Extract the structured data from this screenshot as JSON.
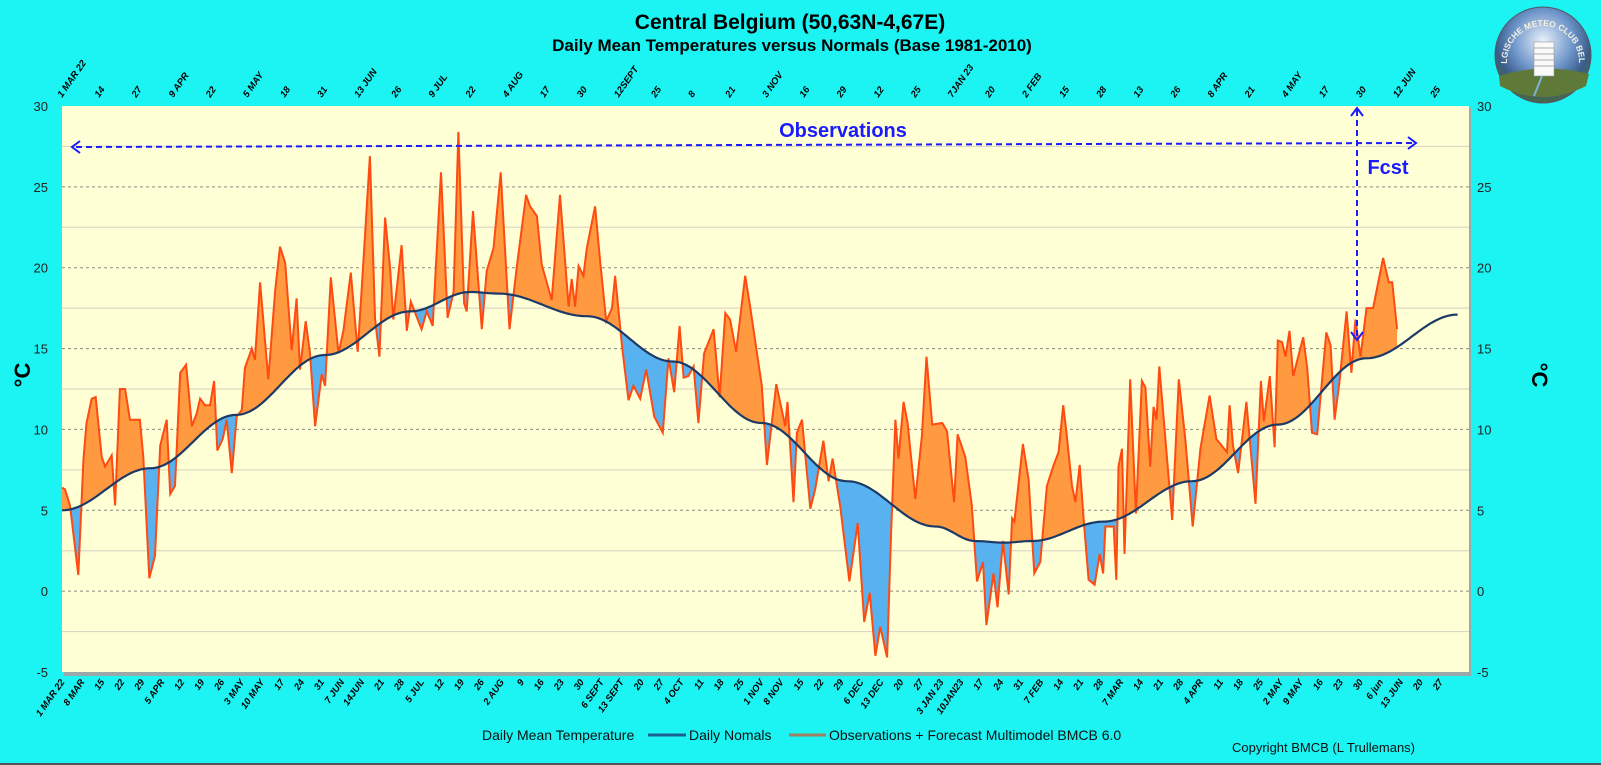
{
  "title": "Central Belgium (50,63N-4,67E)",
  "subtitle": "Daily Mean Temperatures versus Normals (Base 1981-2010)",
  "logo_text": "BELGISCHE METEO CLUB BELGE",
  "copyright": "Copyright BMCB (L Trullemans)",
  "colors": {
    "background": "#1cf4f4",
    "plot_bg": "#ffffd6",
    "obs_line": "#ff4a12",
    "above_fill": "#ff9a40",
    "below_fill": "#58b2f0",
    "normal_line": "#1d3a66",
    "annotation": "#1a1aff"
  },
  "chart_data": {
    "type": "area",
    "title": "Central Belgium (50,63N-4,67E)",
    "subtitle": "Daily Mean Temperatures versus Normals (Base 1981-2010)",
    "x_unit": "days since 1 MAR 2022",
    "xlim": [
      0,
      493
    ],
    "ylim": [
      -5,
      30
    ],
    "ylabel": "°C",
    "ylabel_right": "°C",
    "y_ticks": [
      -5,
      0,
      5,
      10,
      15,
      20,
      25,
      30
    ],
    "grid": true,
    "bottom_tick_step_days": 7,
    "bottom_tick_labels": [
      "1 MAR 22",
      "8 MAR",
      "15",
      "22",
      "29",
      "5 APR",
      "12",
      "19",
      "26",
      "3 MAY",
      "10 MAY",
      "17",
      "24",
      "31",
      "7 JUN",
      "14JUN",
      "21",
      "28",
      "5 JUL",
      "12",
      "19",
      "26",
      "2 AUG",
      "9",
      "16",
      "23",
      "30",
      "6 SEPT",
      "13 SEPT",
      "20",
      "27",
      "4 OCT",
      "11",
      "18",
      "25",
      "1 NOV",
      "8 NOV",
      "15",
      "22",
      "29",
      "6 DEC",
      "13 DEC",
      "20",
      "27",
      "3 JAN 23",
      "10JAN23",
      "17",
      "24",
      "31",
      "7 FEB",
      "14",
      "21",
      "28",
      "7 MAR",
      "14",
      "21",
      "28",
      "4 APR",
      "11",
      "18",
      "25",
      "2 MAY",
      "9 MAY",
      "16",
      "23",
      "30",
      "6 jun",
      "13 JUN",
      "20",
      "27"
    ],
    "top_tick_step_days": 13,
    "top_tick_labels": [
      "1 MAR 22",
      "14",
      "27",
      "9 APR",
      "22",
      "5 MAY",
      "18",
      "31",
      "13 JUN",
      "26",
      "9 JUL",
      "22",
      "4 AUG",
      "17",
      "30",
      "12SEPT",
      "25",
      "8",
      "21",
      "3 NOV",
      "16",
      "29",
      "12",
      "25",
      "7JAN 23",
      "20",
      "2 FEB",
      "15",
      "28",
      "13",
      "26",
      "8 APR",
      "21",
      "4 MAY",
      "17",
      "30",
      "12 JUN",
      "25"
    ],
    "legend": {
      "placement": "bottom",
      "entries": [
        "Daily Mean Temperature",
        "Daily Nomals",
        "Observations + Forecast Multimodel BMCB 6.0"
      ]
    },
    "annotations": {
      "observations": "Observations",
      "forecast": "Fcst",
      "forecast_start_day": 453
    },
    "series": [
      {
        "name": "Daily Nomals",
        "points": [
          [
            0,
            5.0
          ],
          [
            31,
            7.6
          ],
          [
            61,
            10.9
          ],
          [
            92,
            14.6
          ],
          [
            122,
            17.3
          ],
          [
            143,
            18.5
          ],
          [
            153,
            18.4
          ],
          [
            184,
            17.0
          ],
          [
            214,
            14.2
          ],
          [
            245,
            10.4
          ],
          [
            275,
            6.8
          ],
          [
            306,
            4.0
          ],
          [
            320,
            3.1
          ],
          [
            330,
            3.0
          ],
          [
            340,
            3.1
          ],
          [
            365,
            4.3
          ],
          [
            396,
            6.8
          ],
          [
            426,
            10.3
          ],
          [
            457,
            14.4
          ],
          [
            489,
            17.1
          ]
        ]
      },
      {
        "name": "Observations + Forecast Multimodel BMCB 6.0",
        "points": [
          [
            0,
            6.4
          ],
          [
            1,
            6.3
          ],
          [
            2.8,
            5.3
          ],
          [
            5.7,
            1.0
          ],
          [
            7.5,
            8.1
          ],
          [
            8.6,
            10.4
          ],
          [
            10.4,
            11.9
          ],
          [
            11.8,
            12.0
          ],
          [
            13.9,
            8.3
          ],
          [
            15.1,
            7.7
          ],
          [
            17.4,
            8.4
          ],
          [
            18.6,
            5.3
          ],
          [
            20.3,
            12.5
          ],
          [
            22.1,
            12.5
          ],
          [
            23.8,
            10.6
          ],
          [
            27.3,
            10.6
          ],
          [
            28.5,
            8.3
          ],
          [
            30.6,
            0.8
          ],
          [
            32.6,
            2.2
          ],
          [
            34.4,
            9.0
          ],
          [
            36.7,
            10.6
          ],
          [
            37.9,
            6.0
          ],
          [
            39.6,
            6.5
          ],
          [
            41.4,
            13.5
          ],
          [
            43.5,
            14.0
          ],
          [
            45.5,
            10.2
          ],
          [
            47.2,
            11.0
          ],
          [
            48.4,
            11.9
          ],
          [
            50.1,
            11.5
          ],
          [
            51.9,
            11.5
          ],
          [
            53.3,
            13.0
          ],
          [
            54.4,
            8.7
          ],
          [
            56.3,
            9.4
          ],
          [
            57.7,
            10.6
          ],
          [
            59.5,
            7.3
          ],
          [
            61.2,
            10.8
          ],
          [
            63,
            11.2
          ],
          [
            64.1,
            13.8
          ],
          [
            66.5,
            15.0
          ],
          [
            67.6,
            14.3
          ],
          [
            69.4,
            19.1
          ],
          [
            72.3,
            13.1
          ],
          [
            74.7,
            18.6
          ],
          [
            76.4,
            21.3
          ],
          [
            78.2,
            20.3
          ],
          [
            80.5,
            14.9
          ],
          [
            82.2,
            18.1
          ],
          [
            83.4,
            13.7
          ],
          [
            85.4,
            16.7
          ],
          [
            86.9,
            14.7
          ],
          [
            88.7,
            10.2
          ],
          [
            91,
            13.4
          ],
          [
            92.2,
            12.7
          ],
          [
            94.2,
            19.4
          ],
          [
            96.9,
            14.7
          ],
          [
            98.6,
            16.1
          ],
          [
            101.2,
            19.7
          ],
          [
            103.6,
            14.8
          ],
          [
            105,
            18.7
          ],
          [
            107.9,
            26.9
          ],
          [
            109.7,
            16.8
          ],
          [
            111.2,
            14.5
          ],
          [
            113.2,
            23.1
          ],
          [
            115,
            19.9
          ],
          [
            116.1,
            16.8
          ],
          [
            119,
            21.4
          ],
          [
            120.8,
            16.1
          ],
          [
            122.2,
            17.9
          ],
          [
            126,
            16.2
          ],
          [
            127.8,
            17.3
          ],
          [
            129.9,
            16.4
          ],
          [
            132.8,
            25.9
          ],
          [
            135.1,
            16.9
          ],
          [
            137.2,
            18.5
          ],
          [
            138.9,
            28.4
          ],
          [
            140.9,
            17.8
          ],
          [
            141.8,
            17.3
          ],
          [
            144,
            23.5
          ],
          [
            147.1,
            16.2
          ],
          [
            148.8,
            19.8
          ],
          [
            151.2,
            21.2
          ],
          [
            153.7,
            25.9
          ],
          [
            156.8,
            16.2
          ],
          [
            159.4,
            20.1
          ],
          [
            162.6,
            24.5
          ],
          [
            164,
            23.8
          ],
          [
            166.4,
            23.2
          ],
          [
            168.1,
            20.2
          ],
          [
            171.6,
            18.0
          ],
          [
            174.5,
            24.5
          ],
          [
            177.5,
            17.6
          ],
          [
            178.6,
            19.3
          ],
          [
            179.8,
            17.6
          ],
          [
            181,
            20.1
          ],
          [
            182.7,
            19.5
          ],
          [
            183.9,
            21.2
          ],
          [
            186.8,
            23.8
          ],
          [
            188.6,
            20.3
          ],
          [
            190.7,
            16.7
          ],
          [
            192.7,
            17.5
          ],
          [
            193.8,
            19.5
          ],
          [
            196.2,
            15.2
          ],
          [
            198.5,
            11.8
          ],
          [
            200.2,
            12.7
          ],
          [
            202.6,
            11.9
          ],
          [
            204.7,
            13.7
          ],
          [
            207.5,
            10.8
          ],
          [
            210.5,
            9.8
          ],
          [
            212.5,
            14.4
          ],
          [
            214.5,
            12.3
          ],
          [
            216.4,
            16.4
          ],
          [
            217.8,
            13.2
          ],
          [
            219.5,
            13.3
          ],
          [
            221.3,
            13.9
          ],
          [
            223,
            10.4
          ],
          [
            225,
            14.7
          ],
          [
            228.3,
            16.2
          ],
          [
            230.4,
            12.0
          ],
          [
            232.4,
            17.2
          ],
          [
            234.1,
            16.8
          ],
          [
            236.2,
            14.8
          ],
          [
            239.4,
            19.5
          ],
          [
            241.1,
            17.6
          ],
          [
            245.2,
            12.7
          ],
          [
            247,
            7.8
          ],
          [
            250.3,
            12.8
          ],
          [
            253.4,
            10.2
          ],
          [
            254.2,
            11.7
          ],
          [
            256.3,
            5.5
          ],
          [
            257.5,
            9.8
          ],
          [
            259.3,
            10.6
          ],
          [
            262.2,
            5.1
          ],
          [
            263.9,
            6.3
          ],
          [
            266.8,
            9.3
          ],
          [
            268.6,
            6.8
          ],
          [
            270,
            8.2
          ],
          [
            272.7,
            5.2
          ],
          [
            275.9,
            0.6
          ],
          [
            278.8,
            4.2
          ],
          [
            281.1,
            -1.9
          ],
          [
            283,
            -0.1
          ],
          [
            285,
            -4.0
          ],
          [
            286.7,
            -2.2
          ],
          [
            289.1,
            -4.1
          ],
          [
            290.5,
            3.6
          ],
          [
            292,
            10.6
          ],
          [
            293.1,
            8.2
          ],
          [
            294.9,
            11.7
          ],
          [
            296.3,
            10.4
          ],
          [
            299,
            5.7
          ],
          [
            301.3,
            9.6
          ],
          [
            302.9,
            14.5
          ],
          [
            304.9,
            10.3
          ],
          [
            308.4,
            10.4
          ],
          [
            310.1,
            9.9
          ],
          [
            312.6,
            5.5
          ],
          [
            313.8,
            9.7
          ],
          [
            316.5,
            8.3
          ],
          [
            318.8,
            5.3
          ],
          [
            320.6,
            0.6
          ],
          [
            322.7,
            1.8
          ],
          [
            323.9,
            -2.1
          ],
          [
            326.4,
            1.1
          ],
          [
            327.8,
            -1.0
          ],
          [
            329.7,
            3.1
          ],
          [
            331.7,
            -0.2
          ],
          [
            332.9,
            4.5
          ],
          [
            333.7,
            4.3
          ],
          [
            336.7,
            9.1
          ],
          [
            338.7,
            6.9
          ],
          [
            340.7,
            1.1
          ],
          [
            342.8,
            1.8
          ],
          [
            345.1,
            6.5
          ],
          [
            347.5,
            7.8
          ],
          [
            349.2,
            8.6
          ],
          [
            350.8,
            11.5
          ],
          [
            351.9,
            9.9
          ],
          [
            353.9,
            6.5
          ],
          [
            355.1,
            5.5
          ],
          [
            356.6,
            7.8
          ],
          [
            358,
            4.4
          ],
          [
            359.7,
            0.7
          ],
          [
            361.8,
            0.4
          ],
          [
            363.6,
            2.3
          ],
          [
            364.8,
            1.1
          ],
          [
            365.6,
            4.0
          ],
          [
            368.5,
            4.0
          ],
          [
            369.4,
            0.7
          ],
          [
            370.2,
            7.7
          ],
          [
            371.4,
            8.8
          ],
          [
            372.3,
            2.3
          ],
          [
            374.3,
            13.1
          ],
          [
            376.3,
            4.8
          ],
          [
            378.4,
            13.0
          ],
          [
            379.6,
            12.6
          ],
          [
            381.3,
            7.7
          ],
          [
            382.5,
            11.4
          ],
          [
            383.5,
            10.6
          ],
          [
            384.5,
            13.9
          ],
          [
            389,
            4.4
          ],
          [
            391.3,
            13.1
          ],
          [
            393.6,
            9.4
          ],
          [
            396.2,
            4.0
          ],
          [
            398.9,
            8.8
          ],
          [
            402.1,
            12.1
          ],
          [
            404.5,
            9.4
          ],
          [
            408.2,
            8.6
          ],
          [
            409.1,
            11.5
          ],
          [
            410.3,
            9.0
          ],
          [
            412.1,
            7.3
          ],
          [
            415,
            11.7
          ],
          [
            418.2,
            5.4
          ],
          [
            420.1,
            13.0
          ],
          [
            421.1,
            10.5
          ],
          [
            423.2,
            13.3
          ],
          [
            424.9,
            8.9
          ],
          [
            426,
            15.5
          ],
          [
            427.5,
            15.4
          ],
          [
            428.7,
            14.5
          ],
          [
            430.1,
            16.1
          ],
          [
            431.4,
            13.3
          ],
          [
            434.9,
            15.7
          ],
          [
            436.3,
            13.8
          ],
          [
            438,
            9.8
          ],
          [
            439.8,
            9.7
          ],
          [
            443,
            16.0
          ],
          [
            444.5,
            15.2
          ],
          [
            445.9,
            10.6
          ],
          [
            447.6,
            12.9
          ],
          [
            450.1,
            17.3
          ],
          [
            451.8,
            13.5
          ],
          [
            453.2,
            16.8
          ],
          [
            455,
            14.5
          ],
          [
            457.1,
            17.5
          ],
          [
            459.4,
            17.5
          ],
          [
            462.9,
            20.6
          ],
          [
            464.9,
            19.1
          ],
          [
            466.1,
            19.1
          ],
          [
            467.8,
            16.2
          ]
        ]
      }
    ]
  }
}
